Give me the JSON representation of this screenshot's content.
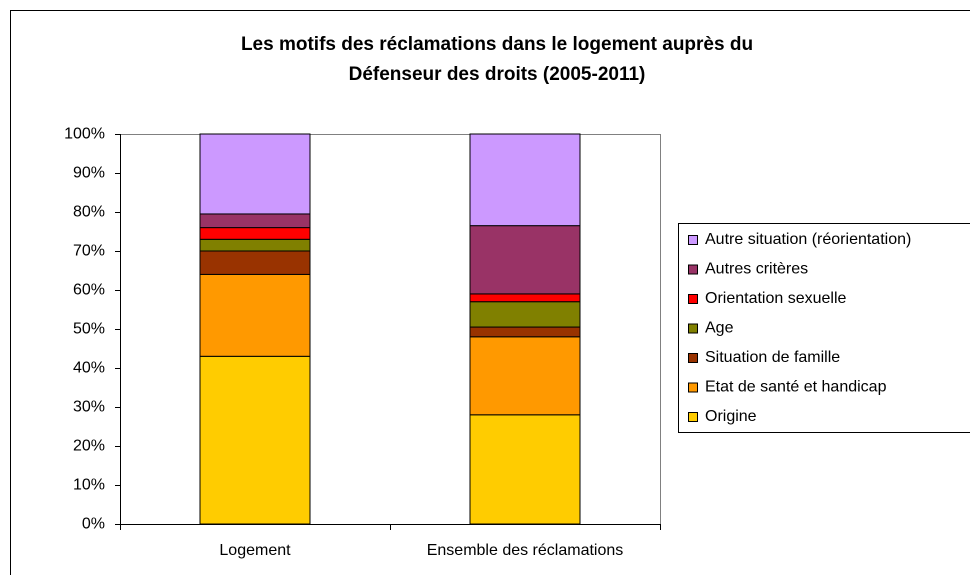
{
  "chart_data": {
    "type": "stacked_bar",
    "title": [
      "Les motifs des réclamations dans le logement auprès du",
      "Défenseur des droits  (2005-2011)"
    ],
    "categories": [
      "Logement",
      "Ensemble des réclamations"
    ],
    "series": [
      {
        "name": "Origine",
        "color": "#ffcc00",
        "values": [
          43,
          28
        ]
      },
      {
        "name": "Etat de santé et handicap",
        "color": "#ff9900",
        "values": [
          21,
          20
        ]
      },
      {
        "name": "Situation de famille",
        "color": "#993300",
        "values": [
          6,
          2.5
        ]
      },
      {
        "name": "Age",
        "color": "#808000",
        "values": [
          3,
          6.5
        ]
      },
      {
        "name": "Orientation sexuelle",
        "color": "#ff0000",
        "values": [
          3,
          2
        ]
      },
      {
        "name": "Autres critères",
        "color": "#993366",
        "values": [
          3.5,
          17.5
        ]
      },
      {
        "name": "Autre situation (réorientation)",
        "color": "#cc99ff",
        "values": [
          20.5,
          23.5
        ]
      }
    ],
    "ylim": [
      0,
      100
    ],
    "yticks": [
      {
        "value": 0,
        "label": "0%"
      },
      {
        "value": 10,
        "label": "10%"
      },
      {
        "value": 20,
        "label": "20%"
      },
      {
        "value": 30,
        "label": "30%"
      },
      {
        "value": 40,
        "label": "40%"
      },
      {
        "value": 50,
        "label": "50%"
      },
      {
        "value": 60,
        "label": "60%"
      },
      {
        "value": 70,
        "label": "70%"
      },
      {
        "value": 80,
        "label": "80%"
      },
      {
        "value": 90,
        "label": "90%"
      },
      {
        "value": 100,
        "label": "100%"
      }
    ],
    "legend": "right"
  }
}
